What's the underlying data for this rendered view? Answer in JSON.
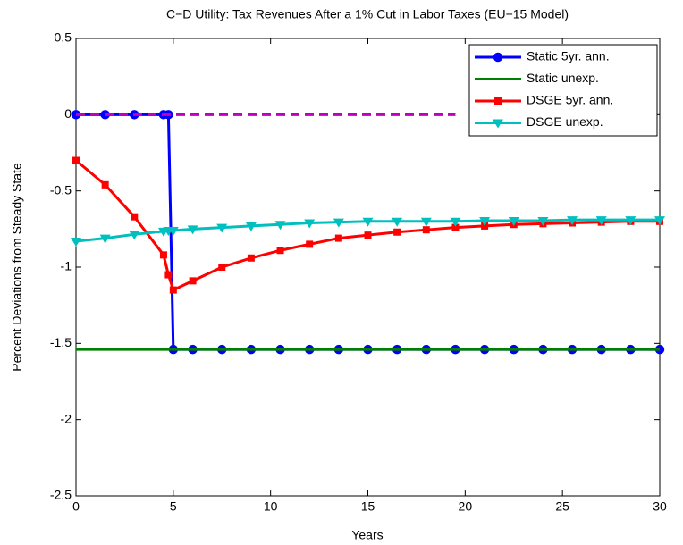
{
  "chart_data": {
    "type": "line",
    "title": "C−D Utility: Tax Revenues After a 1% Cut in Labor Taxes (EU−15 Model)",
    "xlabel": "Years",
    "ylabel": "Percent Deviations from Steady State",
    "x": [
      0,
      1.5,
      3,
      4.5,
      4.75,
      5,
      6,
      7.5,
      9,
      10.5,
      12,
      13.5,
      15,
      16.5,
      18,
      19.5,
      21,
      22.5,
      24,
      25.5,
      27,
      28.5,
      30
    ],
    "series": [
      {
        "name": "Static 5yr. ann.",
        "color": "#0000ff",
        "marker": "circle",
        "values": [
          0,
          0,
          0,
          0,
          0,
          -1.54,
          -1.54,
          -1.54,
          -1.54,
          -1.54,
          -1.54,
          -1.54,
          -1.54,
          -1.54,
          -1.54,
          -1.54,
          -1.54,
          -1.54,
          -1.54,
          -1.54,
          -1.54,
          -1.54,
          -1.54
        ]
      },
      {
        "name": "Static unexp.",
        "color": "#008000",
        "values": [
          -1.54,
          -1.54,
          -1.54,
          -1.54,
          -1.54,
          -1.54,
          -1.54,
          -1.54,
          -1.54,
          -1.54,
          -1.54,
          -1.54,
          -1.54,
          -1.54,
          -1.54,
          -1.54,
          -1.54,
          -1.54,
          -1.54,
          -1.54,
          -1.54,
          -1.54,
          -1.54
        ]
      },
      {
        "name": "DSGE 5yr. ann.",
        "color": "#ff0000",
        "marker": "square",
        "values": [
          -0.3,
          -0.46,
          -0.67,
          -0.92,
          -1.05,
          -1.15,
          -1.09,
          -1.0,
          -0.94,
          -0.89,
          -0.85,
          -0.81,
          -0.79,
          -0.77,
          -0.755,
          -0.74,
          -0.73,
          -0.72,
          -0.715,
          -0.71,
          -0.705,
          -0.7,
          -0.7
        ]
      },
      {
        "name": "DSGE unexp.",
        "color": "#00bfbf",
        "marker": "triangle-down",
        "values": [
          -0.83,
          -0.81,
          -0.785,
          -0.765,
          -0.76,
          -0.76,
          -0.75,
          -0.74,
          -0.73,
          -0.72,
          -0.71,
          -0.705,
          -0.7,
          -0.7,
          -0.7,
          -0.7,
          -0.695,
          -0.695,
          -0.695,
          -0.69,
          -0.69,
          -0.69,
          -0.69
        ]
      },
      {
        "color": "#bf00bf",
        "dash": true,
        "values": [
          0,
          0,
          0,
          0,
          0,
          0,
          0,
          0,
          0,
          0,
          0,
          0,
          0,
          0,
          0,
          0,
          null,
          null,
          null,
          null,
          null,
          null,
          null
        ]
      }
    ],
    "xlim": [
      0,
      30
    ],
    "xticks": [
      0,
      5,
      10,
      15,
      20,
      25,
      30
    ],
    "ylim": [
      -2.5,
      0.5
    ],
    "yticks": [
      -2.5,
      -2,
      -1.5,
      -1,
      -0.5,
      0,
      0.5
    ],
    "grid": false,
    "legend": "top-right"
  }
}
